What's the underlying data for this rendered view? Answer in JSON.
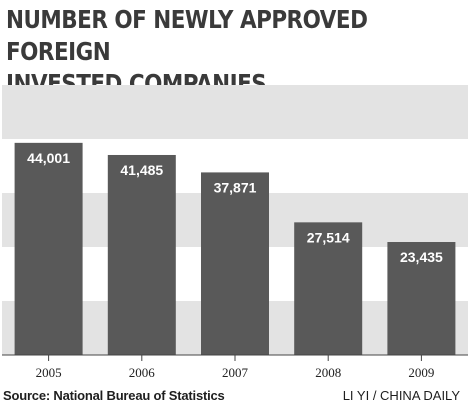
{
  "chart_data": {
    "type": "bar",
    "title": "NUMBER OF NEWLY APPROVED FOREIGN\nINVESTED COMPANIES",
    "categories": [
      "2005",
      "2006",
      "2007",
      "2008",
      "2009"
    ],
    "values": [
      44001,
      41485,
      37871,
      27514,
      23435
    ],
    "value_labels": [
      "44,001",
      "41,485",
      "37,871",
      "27,514",
      "23,435"
    ],
    "ylim": [
      0,
      56000
    ],
    "source": "Source: National Bureau of Statistics",
    "credit": "LI YI / CHINA DAILY",
    "colors": {
      "bar": "#595959",
      "band": "#e3e3e3",
      "background": "#ffffff",
      "axis": "#444444",
      "text": "#3a3a3a"
    }
  }
}
